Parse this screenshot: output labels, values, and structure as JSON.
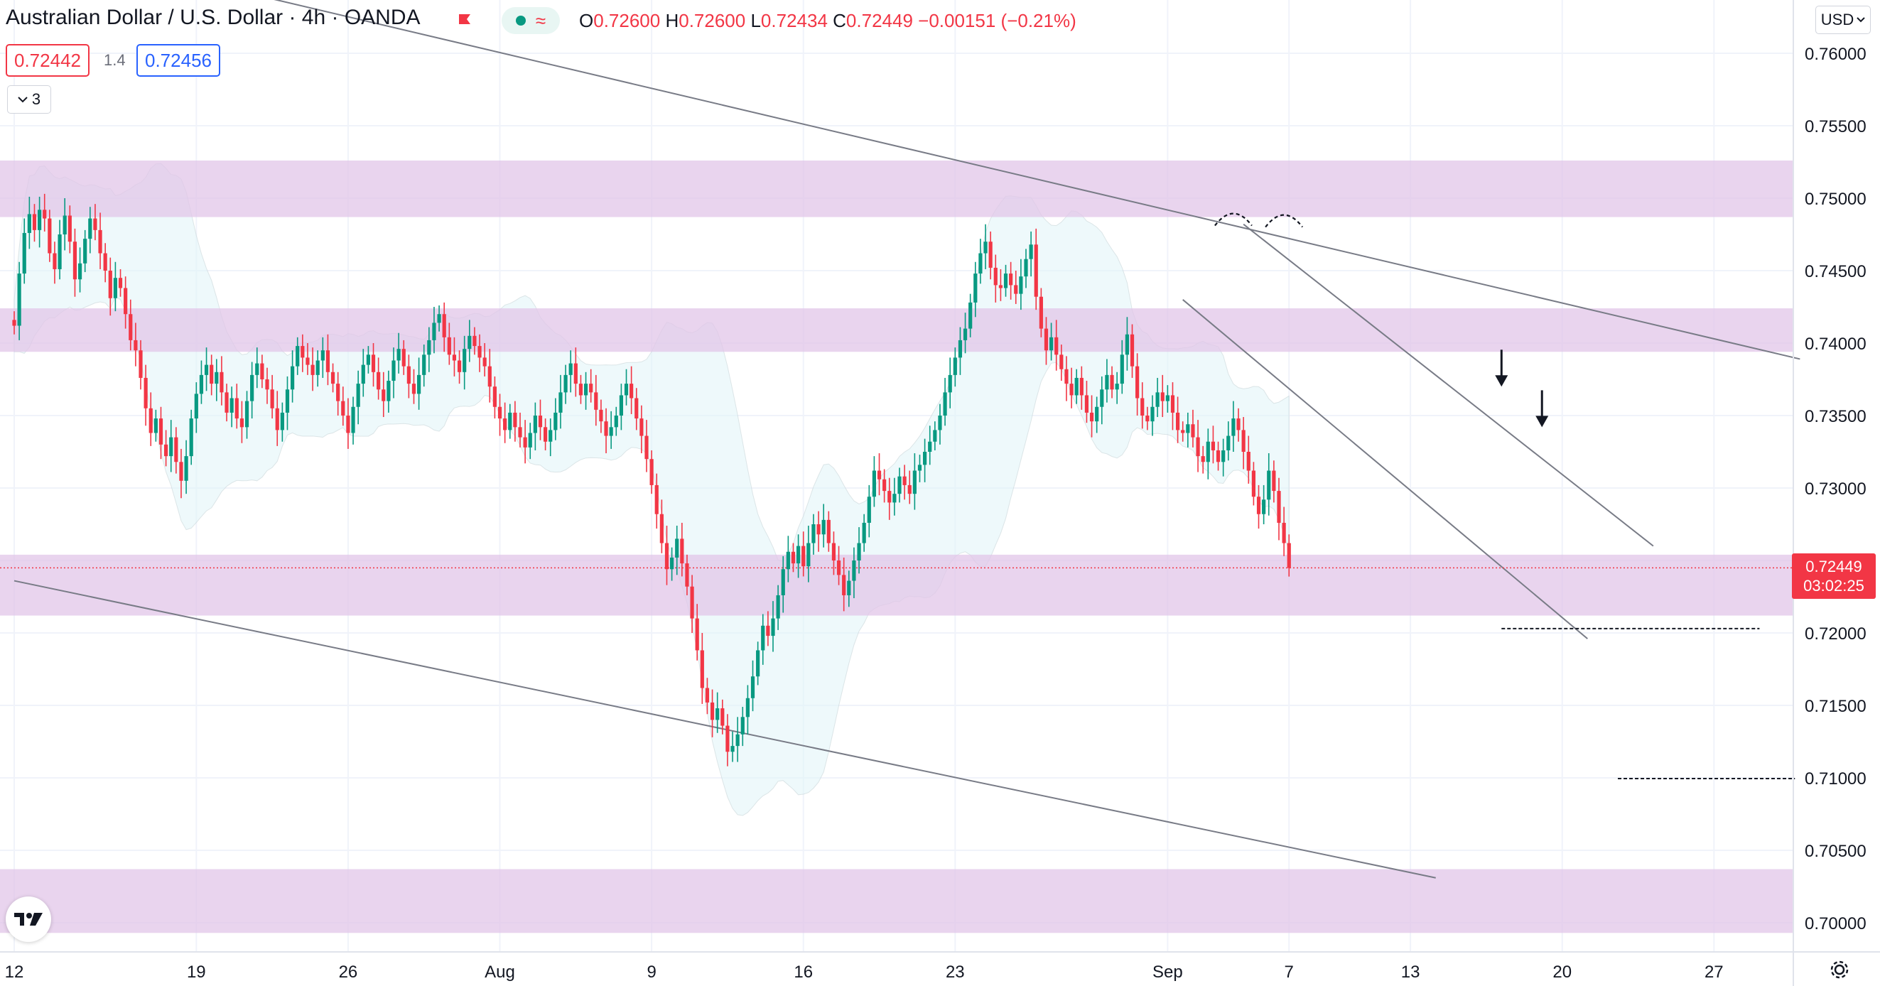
{
  "header": {
    "symbol_title": "Australian Dollar / U.S. Dollar · 4h · OANDA",
    "ohlc": {
      "open_label": "O",
      "open": "0.72600",
      "high_label": "H",
      "high": "0.72600",
      "low_label": "L",
      "low": "0.72434",
      "close_label": "C",
      "close": "0.72449",
      "change": "−0.00151 (−0.21%)"
    }
  },
  "trade_panel": {
    "sell_price": "0.72442",
    "spread": "1.4",
    "buy_price": "0.72456"
  },
  "layers_button": {
    "count": "3"
  },
  "currency_button": {
    "label": "USD"
  },
  "current_price": {
    "price": "0.72449",
    "countdown": "03:02:25"
  },
  "colors": {
    "up": "#089981",
    "down": "#f23645",
    "zone": "#e1c6e8",
    "band": "#e0f4f7",
    "price_label_bg": "#f23645"
  },
  "icons": [
    "flag-icon",
    "status-dot-icon",
    "wave-icon",
    "chevron-down-icon",
    "tradingview-logo-icon",
    "gear-icon",
    "arrow-down-icon"
  ],
  "chart_data": {
    "type": "candlestick",
    "symbol": "AUDUSD",
    "timeframe": "4h",
    "y_axis": {
      "min": 0.697,
      "max": 0.763,
      "ticks": [
        "0.76000",
        "0.75500",
        "0.75000",
        "0.74500",
        "0.74000",
        "0.73500",
        "0.73000",
        "0.72500",
        "0.72000",
        "0.71500",
        "0.71000",
        "0.70500",
        "0.70000"
      ]
    },
    "x_axis": {
      "labels": [
        {
          "label": "12",
          "bar": 0
        },
        {
          "label": "19",
          "bar": 36
        },
        {
          "label": "26",
          "bar": 66
        },
        {
          "label": "Aug",
          "bar": 96
        },
        {
          "label": "9",
          "bar": 126
        },
        {
          "label": "16",
          "bar": 156
        },
        {
          "label": "23",
          "bar": 186
        },
        {
          "label": "Sep",
          "bar": 228
        },
        {
          "label": "7",
          "bar": 252
        },
        {
          "label": "13",
          "bar": 276
        },
        {
          "label": "20",
          "bar": 306
        },
        {
          "label": "27",
          "bar": 336
        }
      ],
      "total_bars": 356
    },
    "grid": true,
    "closes": [
      0.7412,
      0.7448,
      0.7476,
      0.7489,
      0.7478,
      0.7492,
      0.7486,
      0.7462,
      0.7451,
      0.7475,
      0.7488,
      0.747,
      0.7444,
      0.7455,
      0.7472,
      0.7486,
      0.7478,
      0.7462,
      0.745,
      0.7431,
      0.7445,
      0.7438,
      0.742,
      0.7402,
      0.7395,
      0.7376,
      0.7355,
      0.7338,
      0.7348,
      0.733,
      0.7322,
      0.7335,
      0.7318,
      0.7305,
      0.7322,
      0.7348,
      0.7365,
      0.7378,
      0.7385,
      0.7372,
      0.738,
      0.7366,
      0.7352,
      0.7362,
      0.7348,
      0.7342,
      0.736,
      0.7378,
      0.7386,
      0.7375,
      0.7368,
      0.7355,
      0.734,
      0.7352,
      0.7368,
      0.7384,
      0.7398,
      0.739,
      0.7385,
      0.7378,
      0.7388,
      0.7395,
      0.738,
      0.7372,
      0.736,
      0.735,
      0.7338,
      0.7356,
      0.7372,
      0.7385,
      0.7392,
      0.738,
      0.7368,
      0.736,
      0.7374,
      0.7388,
      0.7396,
      0.7384,
      0.7372,
      0.7365,
      0.7378,
      0.7392,
      0.7402,
      0.7414,
      0.742,
      0.7404,
      0.7392,
      0.7388,
      0.738,
      0.7396,
      0.7405,
      0.7398,
      0.739,
      0.7384,
      0.737,
      0.7356,
      0.7348,
      0.734,
      0.7352,
      0.7342,
      0.7335,
      0.7328,
      0.7338,
      0.735,
      0.7342,
      0.7332,
      0.734,
      0.7352,
      0.7366,
      0.7378,
      0.7386,
      0.7372,
      0.7364,
      0.7372,
      0.7366,
      0.7354,
      0.7346,
      0.7336,
      0.7342,
      0.735,
      0.7364,
      0.7372,
      0.7362,
      0.7348,
      0.7336,
      0.732,
      0.7302,
      0.7282,
      0.7262,
      0.7244,
      0.7252,
      0.7265,
      0.7248,
      0.7232,
      0.721,
      0.7188,
      0.7162,
      0.7152,
      0.714,
      0.7148,
      0.7136,
      0.7118,
      0.7122,
      0.713,
      0.7142,
      0.7155,
      0.717,
      0.7188,
      0.7205,
      0.7198,
      0.721,
      0.7226,
      0.7244,
      0.7256,
      0.7248,
      0.726,
      0.7246,
      0.7262,
      0.7275,
      0.7268,
      0.7278,
      0.7262,
      0.725,
      0.724,
      0.7226,
      0.7236,
      0.725,
      0.7262,
      0.7276,
      0.7294,
      0.7312,
      0.7306,
      0.7298,
      0.729,
      0.7296,
      0.7308,
      0.7302,
      0.7296,
      0.7312,
      0.7316,
      0.7325,
      0.7332,
      0.734,
      0.735,
      0.7366,
      0.7378,
      0.739,
      0.7402,
      0.741,
      0.7428,
      0.7448,
      0.7462,
      0.747,
      0.7452,
      0.744,
      0.7438,
      0.7448,
      0.744,
      0.7434,
      0.7446,
      0.7458,
      0.7468,
      0.7432,
      0.741,
      0.7395,
      0.7404,
      0.7392,
      0.7382,
      0.7372,
      0.7364,
      0.7376,
      0.7364,
      0.7352,
      0.7346,
      0.7356,
      0.7368,
      0.7378,
      0.7368,
      0.7372,
      0.7392,
      0.7406,
      0.7384,
      0.7362,
      0.735,
      0.7346,
      0.7356,
      0.7366,
      0.736,
      0.7364,
      0.7352,
      0.734,
      0.7338,
      0.7344,
      0.7335,
      0.7322,
      0.7318,
      0.7332,
      0.7326,
      0.7318,
      0.7326,
      0.7336,
      0.7348,
      0.734,
      0.7325,
      0.7312,
      0.7294,
      0.7282,
      0.7292,
      0.7312,
      0.7298,
      0.7276,
      0.7262,
      0.72449
    ],
    "candle_start_bar": 0,
    "candle_end_bar": 306,
    "bollinger_band": true,
    "zones": [
      {
        "top": 0.7526,
        "bottom": 0.7487
      },
      {
        "top": 0.7424,
        "bottom": 0.7394
      },
      {
        "top": 0.7254,
        "bottom": 0.7212
      },
      {
        "top": 0.7037,
        "bottom": 0.6993
      }
    ],
    "trend_lines": [
      {
        "from": {
          "bar": 48,
          "price": 0.764
        },
        "to": {
          "bar": 353,
          "price": 0.7389
        }
      },
      {
        "from": {
          "bar": 0,
          "price": 0.7236
        },
        "to": {
          "bar": 281,
          "price": 0.7031
        }
      },
      {
        "from": {
          "bar": 243,
          "price": 0.7482
        },
        "to": {
          "bar": 324,
          "price": 0.726
        }
      },
      {
        "from": {
          "bar": 231,
          "price": 0.743
        },
        "to": {
          "bar": 311,
          "price": 0.7196
        }
      }
    ],
    "target_lines": [
      {
        "from_bar": 294,
        "to_bar": 345,
        "price": 0.7203
      },
      {
        "from_bar": 317,
        "to_bar": 352,
        "price": 0.70995
      }
    ],
    "annotations": [
      {
        "type": "arrow-down",
        "bar": 294,
        "price": 0.7368
      },
      {
        "type": "arrow-down",
        "bar": 302,
        "price": 0.734
      },
      {
        "type": "arc",
        "bar": 241,
        "price": 0.7485
      },
      {
        "type": "arc",
        "bar": 251,
        "price": 0.7484
      }
    ],
    "current_price_line": 0.72449
  }
}
